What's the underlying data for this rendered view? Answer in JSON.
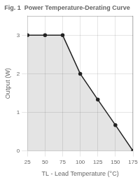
{
  "chart_data": {
    "type": "area",
    "title": "Fig. 1  Power Temperature-Derating Curve",
    "xlabel": "TL - Lead Temperature (°C)",
    "ylabel": "Output (W)",
    "x": [
      25,
      50,
      75,
      100,
      125,
      150,
      175
    ],
    "values": [
      3.0,
      3.0,
      3.0,
      2.0,
      1.33,
      0.67,
      0.0
    ],
    "color": "#222222",
    "xlim": [
      25,
      175
    ],
    "ylim": [
      0,
      3.5
    ],
    "xticks": [
      25,
      50,
      75,
      100,
      125,
      150,
      175
    ],
    "yticks": [
      0,
      1,
      2,
      3
    ],
    "grid": true
  }
}
